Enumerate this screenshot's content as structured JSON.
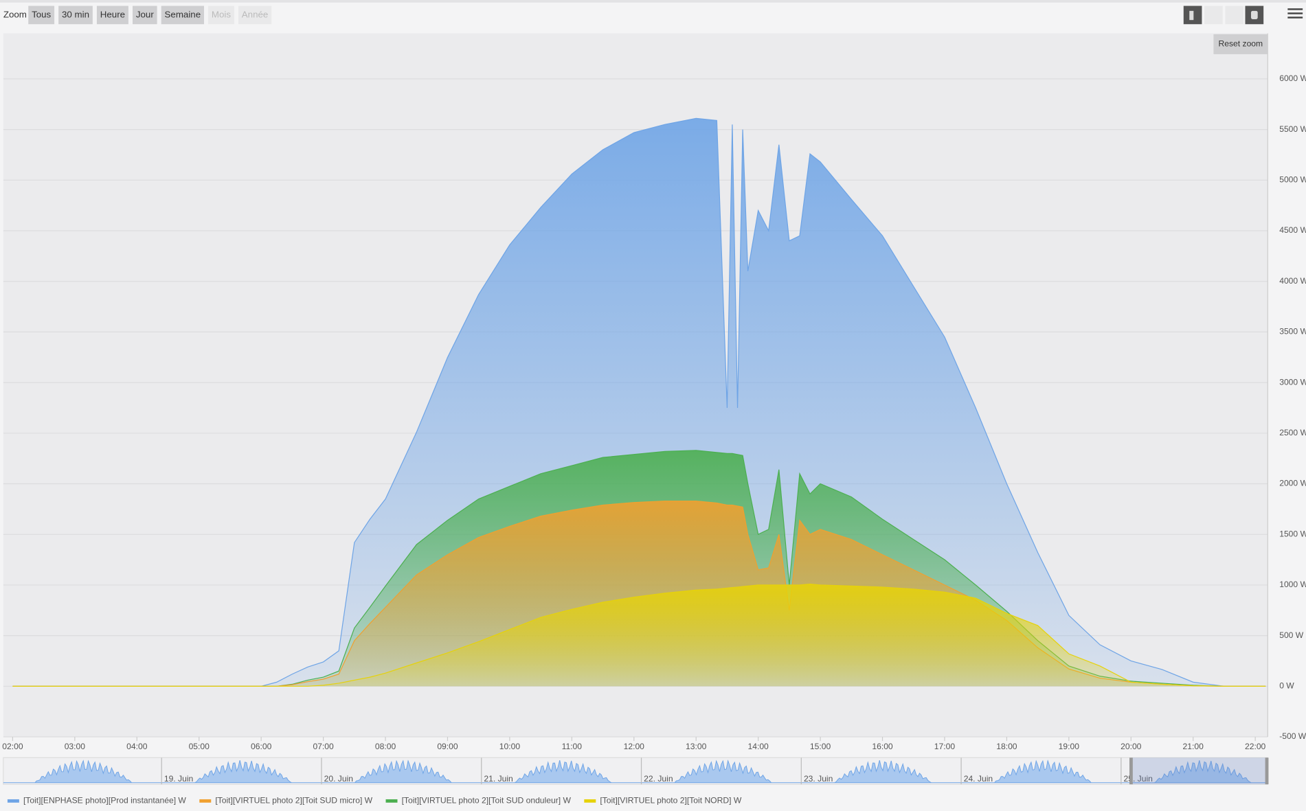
{
  "toolbar": {
    "zoom_label": "Zoom",
    "buttons": [
      {
        "label": "Tous",
        "enabled": true
      },
      {
        "label": "30 min",
        "enabled": true
      },
      {
        "label": "Heure",
        "enabled": true
      },
      {
        "label": "Jour",
        "enabled": true
      },
      {
        "label": "Semaine",
        "enabled": true
      },
      {
        "label": "Mois",
        "enabled": false
      },
      {
        "label": "Année",
        "enabled": false
      }
    ],
    "reset_zoom": "Reset zoom"
  },
  "navigator": {
    "labels": [
      "19. Juin",
      "20. Juin",
      "21. Juin",
      "22. Juin",
      "23. Juin",
      "24. Juin",
      "25. Juin"
    ]
  },
  "chart_data": {
    "type": "area",
    "x": [
      "02:00",
      "03:00",
      "04:00",
      "05:00",
      "06:00",
      "06:15",
      "06:30",
      "06:45",
      "07:00",
      "07:15",
      "07:30",
      "07:45",
      "08:00",
      "08:30",
      "09:00",
      "09:30",
      "10:00",
      "10:30",
      "11:00",
      "11:30",
      "12:00",
      "12:30",
      "13:00",
      "13:20",
      "13:30",
      "13:35",
      "13:40",
      "13:45",
      "13:50",
      "14:00",
      "14:10",
      "14:20",
      "14:30",
      "14:40",
      "14:50",
      "15:00",
      "15:30",
      "16:00",
      "16:30",
      "17:00",
      "17:30",
      "18:00",
      "18:30",
      "19:00",
      "19:30",
      "20:00",
      "20:30",
      "21:00",
      "21:30",
      "22:00",
      "22:10"
    ],
    "xlim": [
      "01:51",
      "22:12"
    ],
    "xticks": [
      "02:00",
      "03:00",
      "04:00",
      "05:00",
      "06:00",
      "07:00",
      "08:00",
      "09:00",
      "10:00",
      "11:00",
      "12:00",
      "13:00",
      "14:00",
      "15:00",
      "16:00",
      "17:00",
      "18:00",
      "19:00",
      "20:00",
      "21:00",
      "22:00"
    ],
    "ylim": [
      -500,
      6450
    ],
    "yticks": [
      {
        "value": -500,
        "label": "-500 W"
      },
      {
        "value": 0,
        "label": "0 W"
      },
      {
        "value": 500,
        "label": "500 W"
      },
      {
        "value": 1000,
        "label": "1000 W"
      },
      {
        "value": 1500,
        "label": "1500 W"
      },
      {
        "value": 2000,
        "label": "2000 W"
      },
      {
        "value": 2500,
        "label": "2500 W"
      },
      {
        "value": 3000,
        "label": "3000 W"
      },
      {
        "value": 3500,
        "label": "3500 W"
      },
      {
        "value": 4000,
        "label": "4000 W"
      },
      {
        "value": 4500,
        "label": "4500 W"
      },
      {
        "value": 5000,
        "label": "5000 W"
      },
      {
        "value": 5500,
        "label": "5500 W"
      },
      {
        "value": 6000,
        "label": "6000 W"
      }
    ],
    "grid": true,
    "series": [
      {
        "name": "[Toit][ENPHASE photo][Prod instantanée] W",
        "color": "#6ea4e6",
        "values": [
          0,
          0,
          0,
          0,
          0,
          40,
          120,
          190,
          240,
          350,
          1420,
          1650,
          1850,
          2510,
          3250,
          3870,
          4360,
          4730,
          5060,
          5300,
          5470,
          5550,
          5610,
          5590,
          2750,
          5550,
          2750,
          5500,
          4100,
          4700,
          4500,
          5350,
          4400,
          4450,
          5260,
          5180,
          4810,
          4450,
          3950,
          3450,
          2750,
          2000,
          1320,
          700,
          410,
          250,
          165,
          40,
          0,
          0,
          0
        ]
      },
      {
        "name": "[Toit][VIRTUEL photo 2][Toit SUD micro] W",
        "color": "#f0a030",
        "values": [
          0,
          0,
          0,
          0,
          0,
          0,
          15,
          45,
          70,
          120,
          450,
          620,
          780,
          1100,
          1300,
          1470,
          1580,
          1680,
          1740,
          1790,
          1815,
          1830,
          1830,
          1810,
          1790,
          1790,
          1780,
          1770,
          1500,
          1150,
          1170,
          1500,
          750,
          1640,
          1500,
          1550,
          1450,
          1300,
          1150,
          1000,
          850,
          650,
          380,
          170,
          80,
          40,
          20,
          5,
          0,
          0,
          0
        ]
      },
      {
        "name": "[Toit][VIRTUEL photo 2][Toit SUD onduleur] W",
        "color": "#4caf50",
        "values": [
          0,
          0,
          0,
          0,
          0,
          0,
          20,
          60,
          90,
          150,
          575,
          780,
          990,
          1400,
          1640,
          1850,
          1975,
          2100,
          2180,
          2260,
          2290,
          2320,
          2330,
          2310,
          2300,
          2300,
          2290,
          2280,
          2000,
          1500,
          1550,
          2140,
          1000,
          2100,
          1900,
          2000,
          1870,
          1650,
          1450,
          1250,
          1000,
          740,
          450,
          200,
          100,
          50,
          30,
          10,
          0,
          0,
          0
        ]
      },
      {
        "name": "[Toit][VIRTUEL photo 2][Toit NORD] W",
        "color": "#e6d20a",
        "values": [
          0,
          0,
          0,
          0,
          0,
          0,
          0,
          0,
          10,
          30,
          60,
          90,
          130,
          230,
          330,
          440,
          560,
          680,
          760,
          830,
          880,
          920,
          950,
          960,
          970,
          975,
          980,
          985,
          990,
          1000,
          1000,
          1000,
          1000,
          1000,
          1010,
          1000,
          990,
          980,
          960,
          930,
          870,
          720,
          600,
          320,
          200,
          40,
          20,
          5,
          0,
          0,
          0
        ]
      }
    ]
  }
}
